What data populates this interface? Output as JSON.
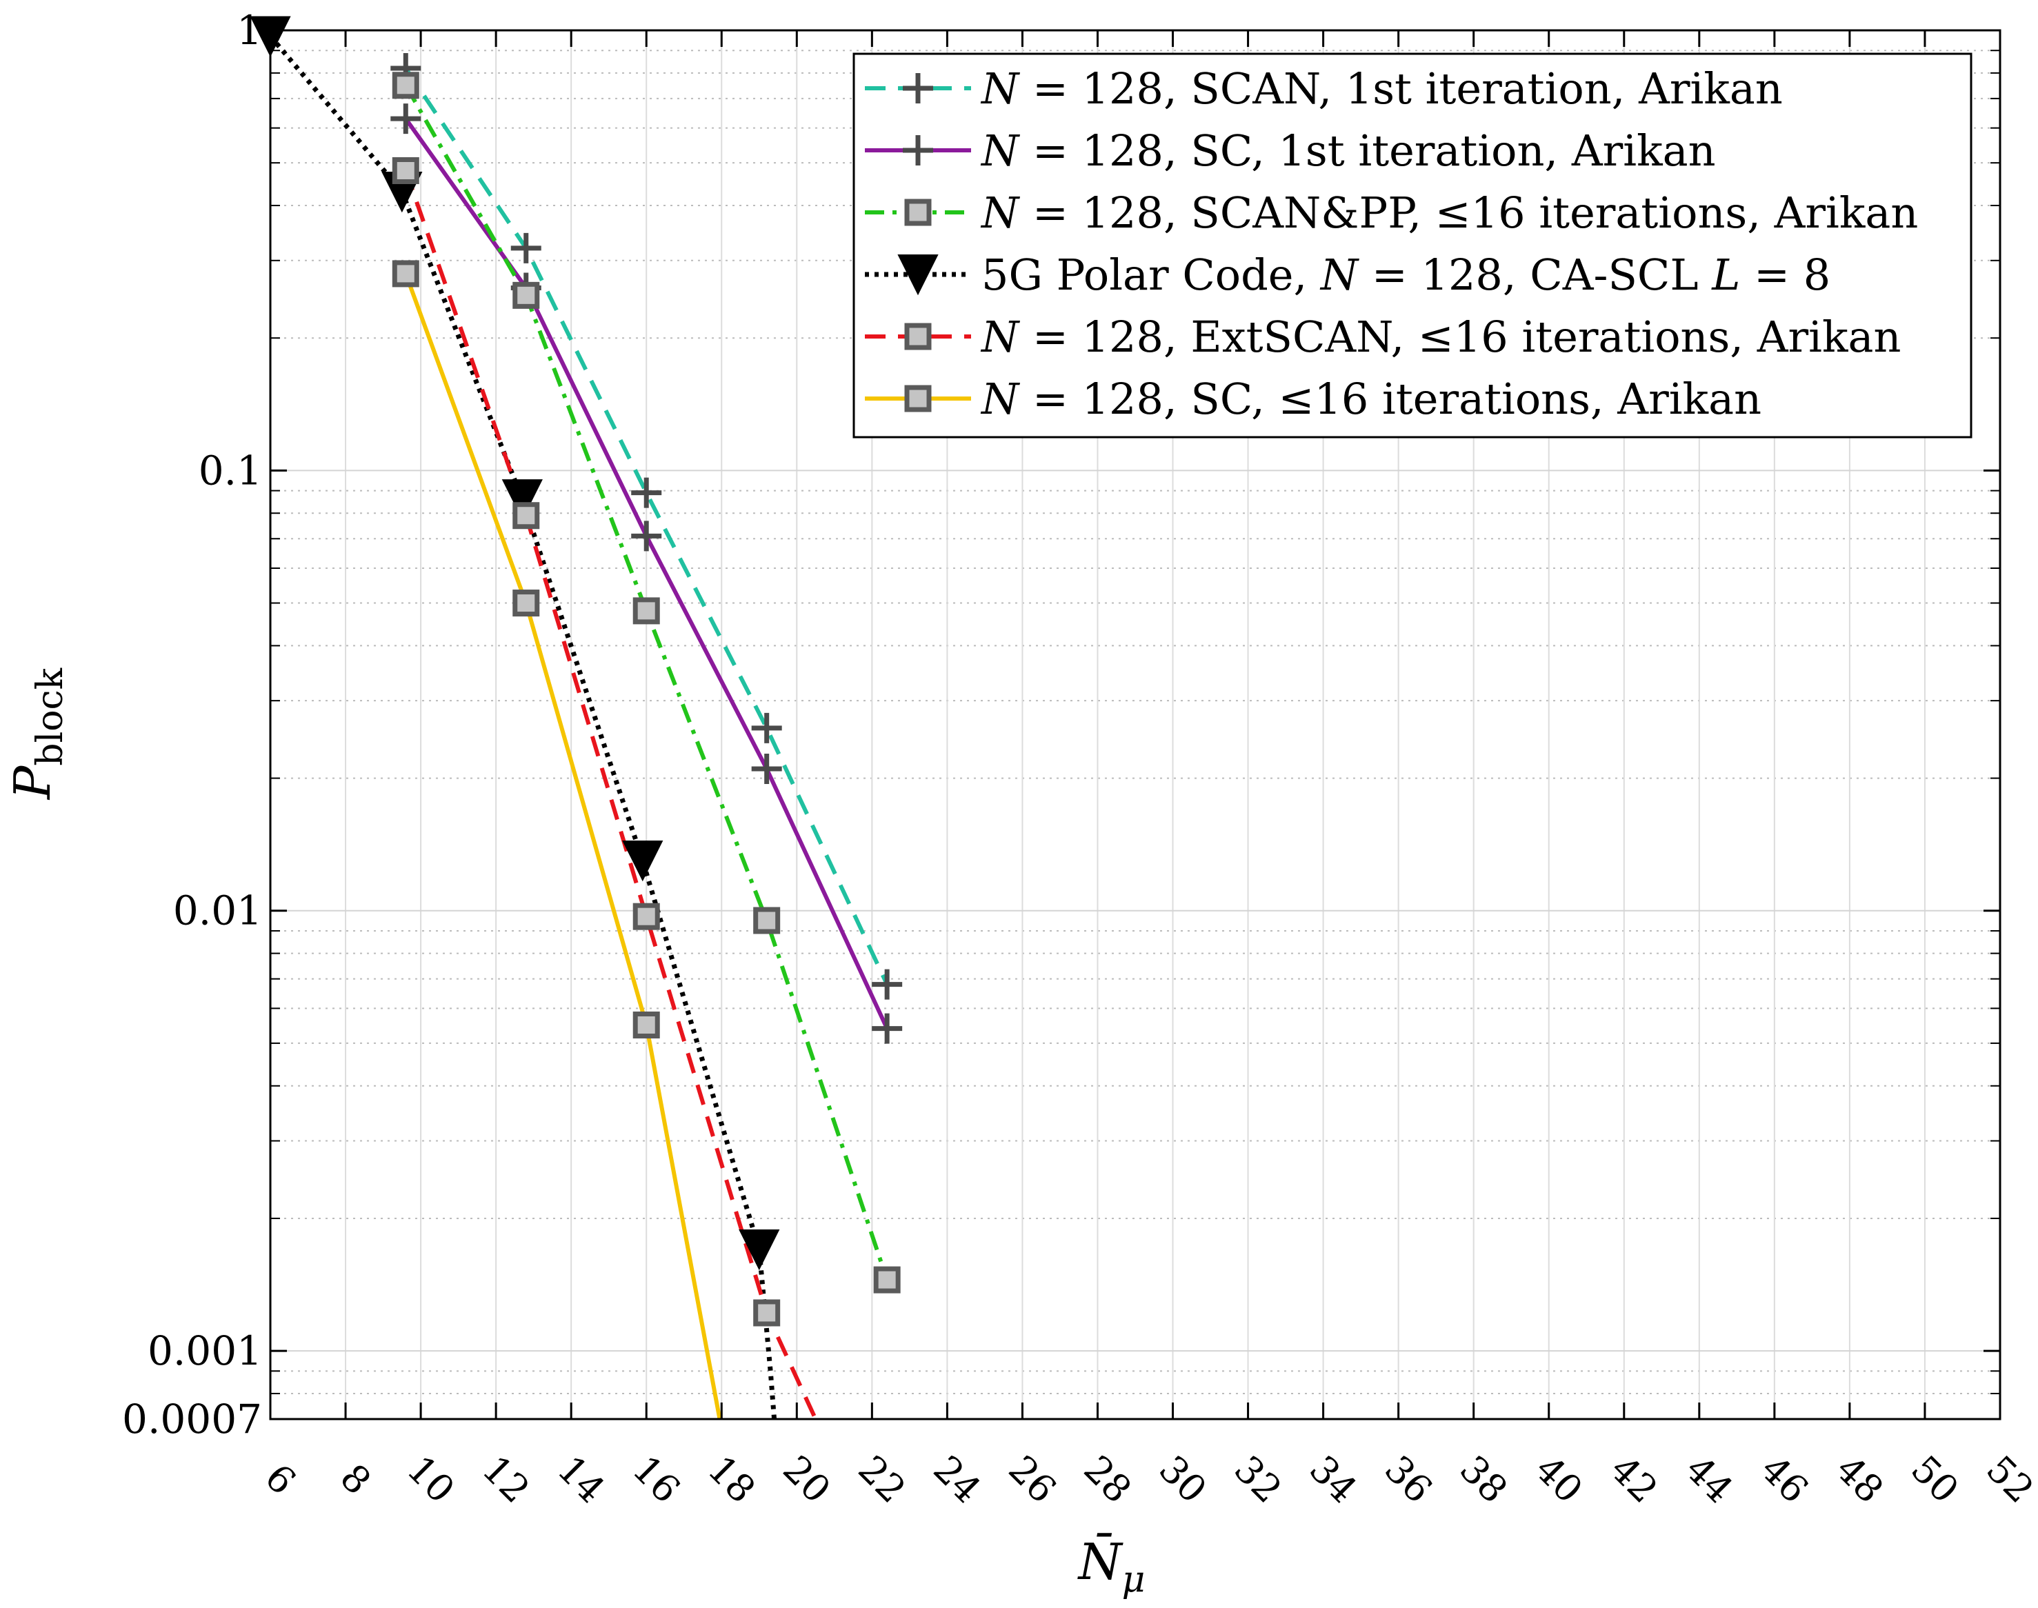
{
  "chart_data": {
    "type": "line",
    "xlabel": "N̄",
    "xlabel_sub": "μ",
    "ylabel": "P",
    "ylabel_sub": "block",
    "xscale": "linear",
    "yscale": "log",
    "xlim": [
      6,
      52
    ],
    "ylim": [
      0.0007,
      1
    ],
    "x_ticks": [
      6,
      8,
      10,
      12,
      14,
      16,
      18,
      20,
      22,
      24,
      26,
      28,
      30,
      32,
      34,
      36,
      38,
      40,
      42,
      44,
      46,
      48,
      50,
      52
    ],
    "y_ticks": [
      {
        "value": 1,
        "label": "1"
      },
      {
        "value": 0.1,
        "label": "0.1"
      },
      {
        "value": 0.01,
        "label": "0.01"
      },
      {
        "value": 0.001,
        "label": "0.001"
      },
      {
        "value": 0.0007,
        "label": "0.0007"
      }
    ],
    "grid": true,
    "legend_position": "top-right",
    "series": [
      {
        "name": "N = 128, SCAN, 1st iteration, Arikan",
        "color": "#20c0a0",
        "dash": "dashed",
        "marker": "plus",
        "x": [
          9.6,
          12.8,
          16.0,
          19.2,
          22.4
        ],
        "y": [
          0.82,
          0.32,
          0.089,
          0.026,
          0.0068
        ]
      },
      {
        "name": "N = 128, SC, 1st iteration, Arikan",
        "color": "#8b1a9b",
        "dash": "solid",
        "marker": "plus",
        "x": [
          9.6,
          12.8,
          16.0,
          19.2,
          22.4
        ],
        "y": [
          0.63,
          0.26,
          0.071,
          0.021,
          0.0054
        ]
      },
      {
        "name": "N = 128, SCAN&PP, ≤16 iterations, Arikan",
        "color": "#22c41a",
        "dash": "dashdot",
        "marker": "square",
        "x": [
          9.6,
          12.8,
          16.0,
          19.2,
          22.4
        ],
        "y": [
          0.75,
          0.25,
          0.048,
          0.0095,
          0.00145
        ]
      },
      {
        "name": "5G Polar Code, N = 128, CA-SCL L = 8",
        "color": "#000000",
        "dash": "dotted",
        "marker": "triangle-down",
        "x": [
          6.0,
          9.5,
          12.7,
          15.9,
          19.0,
          19.3,
          19.4
        ],
        "y": [
          0.97,
          0.43,
          0.086,
          0.013,
          0.0017,
          0.0009,
          0.0007
        ]
      },
      {
        "name": "N = 128, ExtSCAN, ≤16 iterations, Arikan",
        "color": "#e8141c",
        "dash": "dashed",
        "marker": "square",
        "x": [
          9.6,
          12.8,
          16.0,
          19.2,
          20.5
        ],
        "y": [
          0.48,
          0.079,
          0.0097,
          0.00122,
          0.0007
        ]
      },
      {
        "name": "N = 128, SC, ≤16 iterations, Arikan",
        "color": "#f5c400",
        "dash": "solid",
        "marker": "square",
        "x": [
          9.6,
          12.8,
          16.0,
          17.95
        ],
        "y": [
          0.28,
          0.05,
          0.0055,
          0.0007
        ]
      }
    ],
    "markers_shown": [
      [
        0.82,
        0.63,
        0.32,
        0.089,
        0.071,
        0.026,
        0.021,
        0.0068,
        0.0054
      ],
      [
        0.75,
        0.48,
        0.28,
        0.25,
        0.079,
        0.05,
        0.048,
        0.0097,
        0.0095,
        0.0055,
        0.00145,
        0.00122
      ]
    ],
    "legend": [
      {
        "text_parts": [
          [
            "N",
            "it"
          ],
          [
            " = 128, SCAN, 1st iteration, Arikan",
            ""
          ]
        ]
      },
      {
        "text_parts": [
          [
            "N",
            "it"
          ],
          [
            " = 128, SC, 1st iteration, Arikan",
            ""
          ]
        ]
      },
      {
        "text_parts": [
          [
            "N",
            "it"
          ],
          [
            " = 128, SCAN&PP, ≤16 iterations, Arikan",
            ""
          ]
        ]
      },
      {
        "text_parts": [
          [
            "5G Polar Code, ",
            ""
          ],
          [
            "N",
            "it"
          ],
          [
            " = 128, CA-SCL ",
            ""
          ],
          [
            "L",
            "it"
          ],
          [
            " = 8",
            ""
          ]
        ]
      },
      {
        "text_parts": [
          [
            "N",
            "it"
          ],
          [
            " = 128, ExtSCAN, ≤16 iterations, Arikan",
            ""
          ]
        ]
      },
      {
        "text_parts": [
          [
            "N",
            "it"
          ],
          [
            " = 128, SC, ≤16 iterations, Arikan",
            ""
          ]
        ]
      }
    ]
  }
}
